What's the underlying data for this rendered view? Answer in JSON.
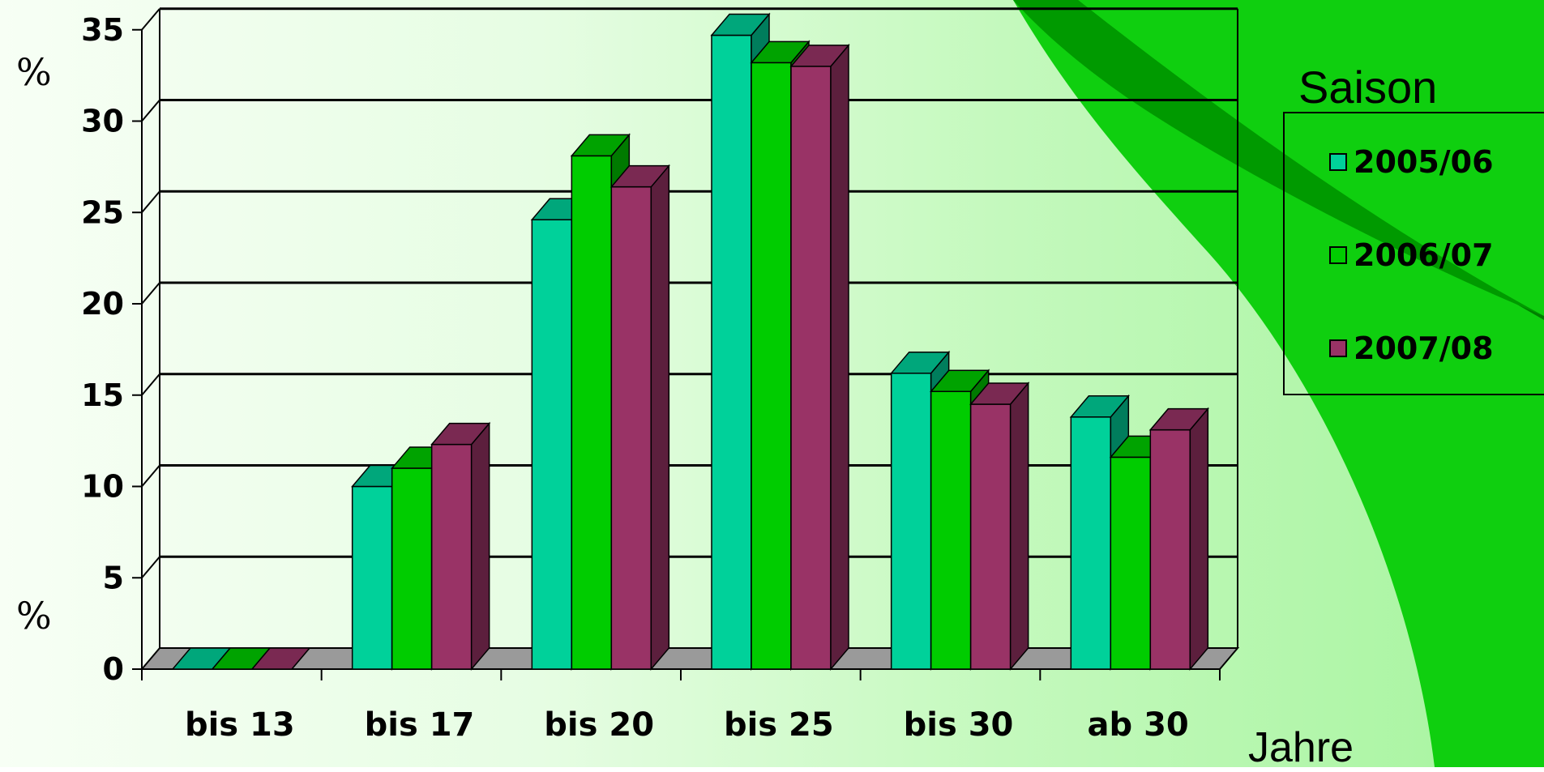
{
  "page": {
    "unit_label_top": "%",
    "unit_label_bottom": "%",
    "x_unit_label": "Jahre"
  },
  "colors": {
    "background_light": "#f5fff3",
    "background_mid": "#b7f7b0",
    "swoosh_dark": "#009a00",
    "swoosh_bright": "#0fcf0f"
  },
  "chart_data": {
    "type": "bar",
    "title": "",
    "xlabel": "Jahre",
    "ylabel": "%",
    "ylim": [
      0,
      35
    ],
    "yticks": [
      "0",
      "5",
      "10",
      "15",
      "20",
      "25",
      "30",
      "35"
    ],
    "grid": true,
    "legend_title": "Saison",
    "legend_position": "right",
    "categories": [
      "bis 13",
      "bis 17",
      "bis 20",
      "bis 25",
      "bis 30",
      "ab 30"
    ],
    "series": [
      {
        "name": "2005/06",
        "color": "#00d19a",
        "values": [
          0,
          10,
          24.6,
          34.7,
          16.2,
          13.8
        ]
      },
      {
        "name": "2006/07",
        "color": "#00cc00",
        "values": [
          0,
          11,
          28.1,
          33.2,
          15.2,
          11.6
        ]
      },
      {
        "name": "2007/08",
        "color": "#993366",
        "values": [
          0,
          12.3,
          26.4,
          33,
          14.5,
          13.1
        ]
      }
    ]
  }
}
